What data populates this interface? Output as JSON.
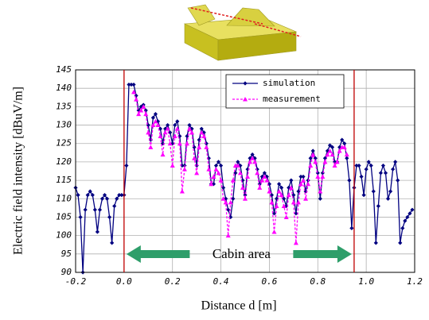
{
  "chart_data": {
    "type": "line",
    "xlabel": "Distance d    [m]",
    "ylabel": "Electric field intensity [dBuV/m]",
    "xlim": [
      -0.2,
      1.2
    ],
    "ylim": [
      90,
      145
    ],
    "xticks": [
      -0.2,
      {
        "value": 0,
        "label": "0.0"
      },
      0.2,
      0.4,
      0.6,
      0.8,
      {
        "value": 1,
        "label": "1.0"
      },
      1.2
    ],
    "yticks": [
      90,
      95,
      100,
      105,
      110,
      115,
      120,
      125,
      130,
      135,
      140,
      145
    ],
    "grid": true,
    "legend": "upper right",
    "vlines": [
      0,
      0.95
    ],
    "vline_color": "#c00000",
    "annotation": "Cabin area",
    "series": [
      {
        "name": "simulation",
        "color": "#000080",
        "marker": "diamond",
        "dashed": false,
        "x": [
          -0.2,
          -0.19,
          -0.18,
          -0.17,
          -0.16,
          -0.15,
          -0.14,
          -0.13,
          -0.12,
          -0.11,
          -0.1,
          -0.09,
          -0.08,
          -0.07,
          -0.06,
          -0.05,
          -0.04,
          -0.03,
          -0.02,
          -0.01,
          0,
          0.01,
          0.02,
          0.03,
          0.04,
          0.05,
          0.06,
          0.07,
          0.08,
          0.09,
          0.1,
          0.11,
          0.12,
          0.13,
          0.14,
          0.15,
          0.16,
          0.17,
          0.18,
          0.19,
          0.2,
          0.21,
          0.22,
          0.23,
          0.24,
          0.25,
          0.26,
          0.27,
          0.28,
          0.29,
          0.3,
          0.31,
          0.32,
          0.33,
          0.34,
          0.35,
          0.36,
          0.37,
          0.38,
          0.39,
          0.4,
          0.41,
          0.42,
          0.43,
          0.44,
          0.45,
          0.46,
          0.47,
          0.48,
          0.49,
          0.5,
          0.51,
          0.52,
          0.53,
          0.54,
          0.55,
          0.56,
          0.57,
          0.58,
          0.59,
          0.6,
          0.61,
          0.62,
          0.63,
          0.64,
          0.65,
          0.66,
          0.67,
          0.68,
          0.69,
          0.7,
          0.71,
          0.72,
          0.73,
          0.74,
          0.75,
          0.76,
          0.77,
          0.78,
          0.79,
          0.8,
          0.81,
          0.82,
          0.83,
          0.84,
          0.85,
          0.86,
          0.87,
          0.88,
          0.89,
          0.9,
          0.91,
          0.92,
          0.93,
          0.94,
          0.95,
          0.96,
          0.97,
          0.98,
          0.99,
          1,
          1.01,
          1.02,
          1.03,
          1.04,
          1.05,
          1.06,
          1.07,
          1.08,
          1.09,
          1.1,
          1.11,
          1.12,
          1.13,
          1.14,
          1.15,
          1.16,
          1.17,
          1.18,
          1.19
        ],
        "values": [
          113,
          111,
          105,
          90,
          107,
          111,
          112,
          111,
          107,
          101,
          107,
          110,
          111,
          110,
          105,
          98,
          108,
          110,
          111,
          111,
          111,
          119,
          141,
          141,
          141,
          138,
          134,
          135,
          135.5,
          134,
          130,
          126,
          132,
          133,
          131,
          129,
          125,
          129,
          130,
          128,
          125,
          130,
          131,
          127,
          119,
          119,
          127,
          130,
          129,
          124,
          119,
          126,
          129,
          128,
          125,
          121,
          114,
          114,
          119,
          120,
          119,
          113,
          110,
          107,
          105,
          110,
          117,
          120,
          119,
          115,
          111,
          118,
          121,
          122,
          121,
          118,
          114,
          116,
          117,
          116,
          114,
          111,
          106,
          110,
          114,
          113,
          110,
          108,
          113,
          115,
          111,
          106,
          112,
          116,
          116,
          112,
          115,
          121,
          123,
          121,
          117,
          110,
          117,
          121,
          123,
          124.5,
          124,
          120,
          120,
          124,
          126,
          125,
          121,
          115,
          102,
          113,
          119,
          119,
          116,
          111,
          118,
          120,
          119,
          112,
          98,
          108,
          117,
          119,
          117,
          110,
          112,
          118,
          120,
          115,
          98,
          102,
          104,
          105,
          106,
          107
        ]
      },
      {
        "name": "measurement",
        "color": "#ff00ff",
        "marker": "triangle",
        "dashed": true,
        "x": [
          0.04,
          0.05,
          0.06,
          0.07,
          0.08,
          0.09,
          0.1,
          0.11,
          0.12,
          0.13,
          0.14,
          0.15,
          0.16,
          0.17,
          0.18,
          0.19,
          0.2,
          0.21,
          0.22,
          0.23,
          0.24,
          0.25,
          0.26,
          0.27,
          0.28,
          0.29,
          0.3,
          0.31,
          0.32,
          0.33,
          0.34,
          0.35,
          0.36,
          0.37,
          0.38,
          0.39,
          0.4,
          0.41,
          0.42,
          0.43,
          0.44,
          0.45,
          0.46,
          0.47,
          0.48,
          0.49,
          0.5,
          0.51,
          0.52,
          0.53,
          0.54,
          0.55,
          0.56,
          0.57,
          0.58,
          0.59,
          0.6,
          0.61,
          0.62,
          0.63,
          0.64,
          0.65,
          0.66,
          0.67,
          0.68,
          0.69,
          0.7,
          0.71,
          0.72,
          0.73,
          0.74,
          0.75,
          0.76,
          0.77,
          0.78,
          0.79,
          0.8,
          0.81,
          0.82,
          0.83,
          0.84,
          0.85,
          0.86,
          0.87,
          0.88,
          0.89,
          0.9,
          0.91,
          0.92
        ],
        "values": [
          139,
          137,
          133,
          134,
          135,
          133,
          128,
          124,
          130,
          131,
          130,
          127,
          122,
          128,
          129,
          125,
          119,
          127,
          129,
          125,
          112,
          118,
          125,
          129,
          128,
          121,
          117,
          124,
          128,
          127,
          124,
          118,
          114,
          116,
          118,
          117,
          115,
          110,
          109,
          100,
          109,
          115,
          119,
          119,
          117,
          113,
          110,
          116,
          120,
          121,
          120,
          117,
          113,
          115,
          116,
          115,
          112,
          109,
          101,
          108,
          112,
          111,
          108,
          105,
          111,
          113,
          109,
          98,
          109,
          114,
          115,
          110,
          114,
          119,
          122,
          120,
          116,
          112,
          116,
          120,
          122,
          123,
          122,
          119,
          120,
          123,
          124,
          124,
          122
        ]
      }
    ]
  }
}
